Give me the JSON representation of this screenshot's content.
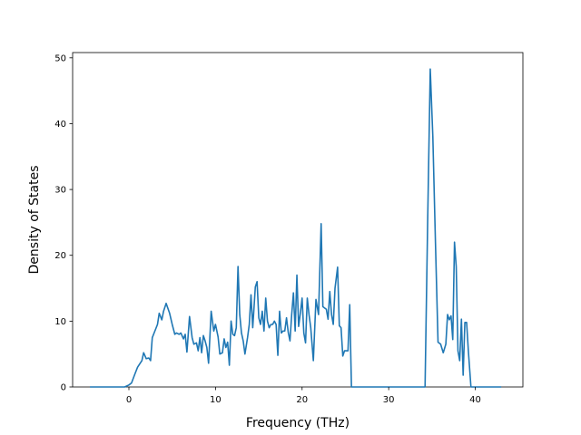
{
  "chart_data": {
    "type": "line",
    "xlabel": "Frequency (THz)",
    "ylabel": "Density of States",
    "xlim": [
      -6.5,
      45.5
    ],
    "ylim": [
      0,
      50.8
    ],
    "xticks": [
      0,
      10,
      20,
      30,
      40
    ],
    "yticks": [
      0,
      10,
      20,
      30,
      40,
      50
    ],
    "grid": false,
    "series": [
      {
        "color": "#1f77b4",
        "points": [
          [
            -4.5,
            0
          ],
          [
            -1.5,
            0
          ],
          [
            -0.5,
            0
          ],
          [
            0.0,
            0.3
          ],
          [
            0.3,
            0.6
          ],
          [
            0.7,
            2.0
          ],
          [
            1.0,
            3.0
          ],
          [
            1.3,
            3.6
          ],
          [
            1.5,
            4.0
          ],
          [
            1.7,
            5.2
          ],
          [
            2.0,
            4.3
          ],
          [
            2.3,
            4.4
          ],
          [
            2.5,
            4.0
          ],
          [
            2.7,
            7.5
          ],
          [
            3.0,
            8.5
          ],
          [
            3.3,
            9.5
          ],
          [
            3.5,
            11.2
          ],
          [
            3.8,
            10.2
          ],
          [
            4.0,
            11.5
          ],
          [
            4.3,
            12.7
          ],
          [
            4.7,
            11.2
          ],
          [
            5.0,
            9.5
          ],
          [
            5.3,
            8.0
          ],
          [
            5.5,
            8.2
          ],
          [
            5.8,
            8.0
          ],
          [
            6.0,
            8.2
          ],
          [
            6.3,
            7.3
          ],
          [
            6.5,
            8.0
          ],
          [
            6.7,
            5.3
          ],
          [
            7.0,
            10.7
          ],
          [
            7.3,
            7.5
          ],
          [
            7.5,
            6.5
          ],
          [
            7.8,
            6.7
          ],
          [
            8.0,
            5.5
          ],
          [
            8.2,
            7.5
          ],
          [
            8.4,
            5.2
          ],
          [
            8.6,
            7.8
          ],
          [
            8.8,
            7.0
          ],
          [
            9.0,
            6.0
          ],
          [
            9.2,
            3.6
          ],
          [
            9.5,
            11.5
          ],
          [
            9.8,
            8.5
          ],
          [
            10.0,
            9.5
          ],
          [
            10.3,
            7.6
          ],
          [
            10.5,
            5.0
          ],
          [
            10.8,
            5.2
          ],
          [
            11.0,
            7.3
          ],
          [
            11.2,
            6.0
          ],
          [
            11.4,
            6.8
          ],
          [
            11.6,
            3.3
          ],
          [
            11.8,
            10.0
          ],
          [
            12.0,
            8.0
          ],
          [
            12.2,
            7.8
          ],
          [
            12.4,
            9.0
          ],
          [
            12.6,
            18.3
          ],
          [
            12.8,
            11.0
          ],
          [
            13.0,
            8.2
          ],
          [
            13.2,
            7.0
          ],
          [
            13.4,
            5.0
          ],
          [
            13.7,
            7.5
          ],
          [
            13.9,
            9.5
          ],
          [
            14.1,
            14.0
          ],
          [
            14.3,
            9.0
          ],
          [
            14.6,
            15.2
          ],
          [
            14.8,
            16.0
          ],
          [
            15.0,
            10.5
          ],
          [
            15.2,
            9.5
          ],
          [
            15.4,
            11.5
          ],
          [
            15.6,
            8.5
          ],
          [
            15.8,
            13.5
          ],
          [
            16.0,
            10.0
          ],
          [
            16.2,
            9.0
          ],
          [
            16.4,
            9.5
          ],
          [
            16.6,
            9.5
          ],
          [
            16.8,
            10.0
          ],
          [
            17.0,
            9.5
          ],
          [
            17.2,
            4.8
          ],
          [
            17.4,
            11.5
          ],
          [
            17.6,
            8.2
          ],
          [
            17.8,
            8.5
          ],
          [
            18.0,
            8.5
          ],
          [
            18.2,
            10.5
          ],
          [
            18.4,
            8.3
          ],
          [
            18.6,
            7.0
          ],
          [
            18.8,
            11.0
          ],
          [
            19.0,
            14.3
          ],
          [
            19.2,
            8.5
          ],
          [
            19.4,
            17.0
          ],
          [
            19.6,
            9.2
          ],
          [
            19.8,
            11.2
          ],
          [
            20.0,
            13.5
          ],
          [
            20.2,
            8.2
          ],
          [
            20.4,
            6.7
          ],
          [
            20.6,
            13.5
          ],
          [
            20.8,
            11.0
          ],
          [
            21.0,
            9.0
          ],
          [
            21.3,
            4.0
          ],
          [
            21.6,
            13.3
          ],
          [
            21.9,
            11.0
          ],
          [
            22.2,
            24.8
          ],
          [
            22.4,
            12.2
          ],
          [
            22.6,
            12.0
          ],
          [
            22.8,
            11.8
          ],
          [
            23.0,
            10.3
          ],
          [
            23.2,
            14.5
          ],
          [
            23.4,
            11.0
          ],
          [
            23.6,
            9.5
          ],
          [
            23.8,
            15.0
          ],
          [
            24.1,
            18.2
          ],
          [
            24.3,
            9.3
          ],
          [
            24.5,
            9.0
          ],
          [
            24.7,
            4.7
          ],
          [
            24.9,
            5.5
          ],
          [
            25.3,
            5.5
          ],
          [
            25.5,
            12.5
          ],
          [
            25.7,
            0
          ],
          [
            26.0,
            0
          ],
          [
            30.0,
            0
          ],
          [
            34.2,
            0
          ],
          [
            34.5,
            25.0
          ],
          [
            34.8,
            48.3
          ],
          [
            35.1,
            38.0
          ],
          [
            35.4,
            22.0
          ],
          [
            35.7,
            6.8
          ],
          [
            36.0,
            6.5
          ],
          [
            36.3,
            5.2
          ],
          [
            36.6,
            6.5
          ],
          [
            36.8,
            11.0
          ],
          [
            37.0,
            10.2
          ],
          [
            37.2,
            10.8
          ],
          [
            37.4,
            7.2
          ],
          [
            37.6,
            22.0
          ],
          [
            37.8,
            18.3
          ],
          [
            38.0,
            5.5
          ],
          [
            38.2,
            4.0
          ],
          [
            38.4,
            10.3
          ],
          [
            38.6,
            1.8
          ],
          [
            38.8,
            9.8
          ],
          [
            39.0,
            9.8
          ],
          [
            39.2,
            5.5
          ],
          [
            39.5,
            0
          ],
          [
            40.0,
            0
          ],
          [
            43.0,
            0
          ]
        ]
      }
    ]
  }
}
